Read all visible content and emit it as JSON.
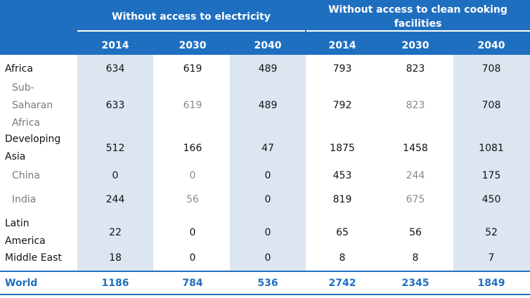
{
  "chart_data": {
    "type": "table",
    "groups": [
      "Without access to electricity",
      "Without access to clean cooking facilities"
    ],
    "years": [
      "2014",
      "2030",
      "2040",
      "2014",
      "2030",
      "2040"
    ],
    "rows": [
      {
        "label": "Africa",
        "sub": false,
        "values": [
          "634",
          "619",
          "489",
          "793",
          "823",
          "708"
        ]
      },
      {
        "label": "Sub-\nSaharan\nAfrica",
        "sub": true,
        "values": [
          "633",
          "619",
          "489",
          "792",
          "823",
          "708"
        ]
      },
      {
        "label": "Developing\nAsia",
        "sub": false,
        "values": [
          "512",
          "166",
          "47",
          "1875",
          "1458",
          "1081"
        ]
      },
      {
        "label": "China",
        "sub": true,
        "values": [
          "0",
          "0",
          "0",
          "453",
          "244",
          "175"
        ]
      },
      {
        "label": "India",
        "sub": true,
        "values": [
          "244",
          "56",
          "0",
          "819",
          "675",
          "450"
        ]
      },
      {
        "label": "Latin\nAmerica",
        "sub": false,
        "values": [
          "22",
          "0",
          "0",
          "65",
          "56",
          "52"
        ]
      },
      {
        "label": "Middle East",
        "sub": false,
        "values": [
          "18",
          "0",
          "0",
          "8",
          "8",
          "7"
        ]
      }
    ],
    "total": {
      "label": "World",
      "values": [
        "1186",
        "784",
        "536",
        "2742",
        "2345",
        "1849"
      ]
    },
    "colors": {
      "header": "#1f6fc1",
      "shade": "#dce6f1",
      "accent": "#1f6fc1"
    }
  }
}
